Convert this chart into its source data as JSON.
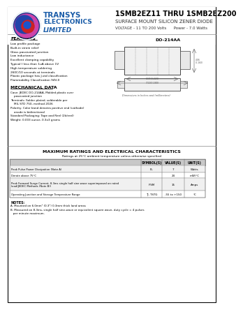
{
  "title_main": "1SMB2EZ11 THRU 1SMB2EZ200",
  "title_sub1": "SURFACE MOUNT SILICON ZENER DIODE",
  "title_sub2": "VOLTAGE - 11 TO 200 Volts      Power - 7.0 Watts",
  "company_name1": "TRANSYS",
  "company_name2": "ELECTRONICS",
  "company_name3": "LIMITED",
  "features_title": "FEATURES",
  "features": [
    "Low profile package",
    "Built-in strain relief",
    "Glass passivated junction",
    "Low inductance",
    "Excellent clamping capability",
    "Typical I less than 1uA above 1V",
    "High temperature soldering",
    "260C/10 seconds at terminals",
    "Plastic package has J-std classification",
    "Flammability Classification 94V-0"
  ],
  "mech_title": "MECHANICAL DATA",
  "mech_lines": [
    "Case: JEDEC DO-214AA, Molded plastic over",
    "    passivated junction",
    "Terminals: Solder plated, solderable per",
    "    MIL STD 750, method 2026",
    "Polarity: Color band denotes positive end (cathode)",
    "    anode is bidirectional",
    "Standard Packaging: Tape and Reel (2k/reel)",
    "Weight: 0.003 ounce, 0.3x3 grams"
  ],
  "package_label": "DO-214AA",
  "table_title": "MAXIMUM RATINGS AND ELECTRICAL CHARACTERISTICS",
  "table_subtitle": "Ratings at 25°C ambient temperature unless otherwise specified",
  "col_headers": [
    "",
    "SYMBOL(S)",
    "VALUE(S)",
    "UNIT(S)"
  ],
  "table_rows": [
    [
      "Peak Pulse Power Dissipation (Note A)",
      "PL",
      "7",
      "Watts"
    ],
    [
      "Derate above 75°C",
      "",
      "24",
      "mW/°C"
    ],
    [
      "Peak Forward Surge Current, 8.3ms single half sine wave superimposed on rated\nload(JEDEC Methods (Note B))",
      "IFSM",
      "15",
      "Amps"
    ],
    [
      "Operating Junction and Storage Temperature Range",
      "TJ, TSTG",
      "-55 to +150",
      "°C"
    ]
  ],
  "notes_title": "NOTES:",
  "note_a": "A. Mounted on 6.0mm² (0.3\") 0.3mm thick land areas",
  "note_b": "B. Measured on 8.3ms, single half sine-wave or equivalent square wave, duty cycle = 4 pulses\n   per minute maximum.",
  "bg_color": "#ffffff",
  "border_color": "#000000",
  "text_color": "#000000",
  "logo_blue": "#1a5ca8",
  "logo_dark_blue": "#0a2a6a",
  "logo_red": "#cc2222",
  "table_header_bg": "#c8c8c8",
  "table_row_bg1": "#f0f0f0",
  "table_row_bg2": "#ffffff"
}
